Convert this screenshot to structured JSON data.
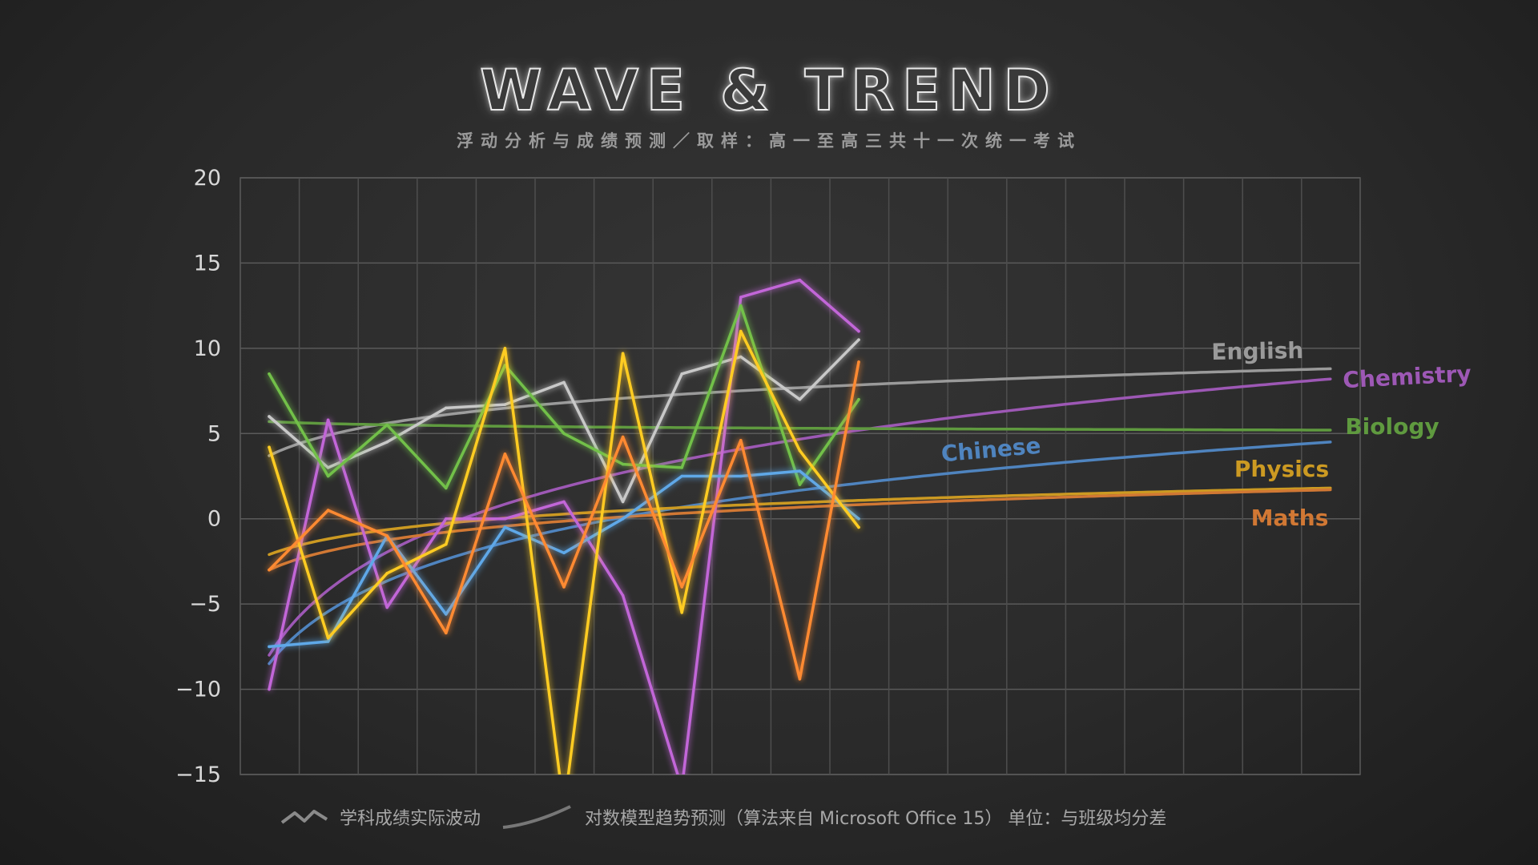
{
  "title": "WAVE & TREND",
  "subtitle": "浮动分析与成绩预测／取样：高一至高三共十一次统一考试",
  "legend": {
    "actual_label": "学科成绩实际波动",
    "trend_label": "对数模型趋势预测（算法来自 Microsoft Office 15） 单位：与班级均分差"
  },
  "chart_data": {
    "type": "line",
    "ylim": [
      -15,
      20
    ],
    "y_ticks": [
      "20",
      "15",
      "10",
      "5",
      "0",
      "−5",
      "−10",
      "−15"
    ],
    "y_tick_values": [
      20,
      15,
      10,
      5,
      0,
      -5,
      -10,
      -15
    ],
    "x_count_actual": 11,
    "x_count_trend": 19,
    "grid": true,
    "series": [
      {
        "name": "English",
        "color": "#c8c8c8",
        "trend_color": "#9a9a9a",
        "values": [
          6,
          3,
          4.5,
          6.5,
          6.7,
          8,
          1,
          8.5,
          9.5,
          7,
          10.5
        ],
        "trend": [
          3.7,
          8.8
        ]
      },
      {
        "name": "Chemistry",
        "color": "#c266d8",
        "trend_color": "#9d58b5",
        "values": [
          -10,
          5.8,
          -5.2,
          0,
          0,
          1,
          -4.5,
          -15.8,
          13,
          14,
          11
        ],
        "trend": [
          -8,
          8.2
        ]
      },
      {
        "name": "Biology",
        "color": "#72c04a",
        "trend_color": "#5f9a3f",
        "values": [
          8.5,
          2.5,
          5.5,
          1.8,
          9,
          5,
          3.2,
          3.0,
          12.5,
          2.0,
          7
        ],
        "trend": [
          5.7,
          5.2
        ]
      },
      {
        "name": "Chinese",
        "color": "#5ea8e8",
        "trend_color": "#4f84bf",
        "values": [
          -7.5,
          -7.2,
          -1,
          -5.6,
          -0.5,
          -2,
          0,
          2.5,
          2.5,
          2.8,
          0
        ],
        "trend": [
          -8.5,
          4.5
        ]
      },
      {
        "name": "Physics",
        "color": "#ffcc22",
        "trend_color": "#cc9a22",
        "values": [
          4.2,
          -7,
          -3.2,
          -1.5,
          10,
          -17,
          9.7,
          -5.5,
          11,
          4,
          -0.5
        ],
        "trend": [
          -2.1,
          1.8
        ]
      },
      {
        "name": "Maths",
        "color": "#ff8a30",
        "trend_color": "#d17834",
        "values": [
          -3,
          0.5,
          -1,
          -6.7,
          3.8,
          -4,
          4.8,
          -4,
          4.6,
          -9.4,
          9.2
        ],
        "trend": [
          -3,
          1.7
        ]
      }
    ]
  },
  "series_labels": {
    "english": "English",
    "chemistry": "Chemistry",
    "biology": "Biology",
    "chinese": "Chinese",
    "physics": "Physics",
    "maths": "Maths"
  }
}
